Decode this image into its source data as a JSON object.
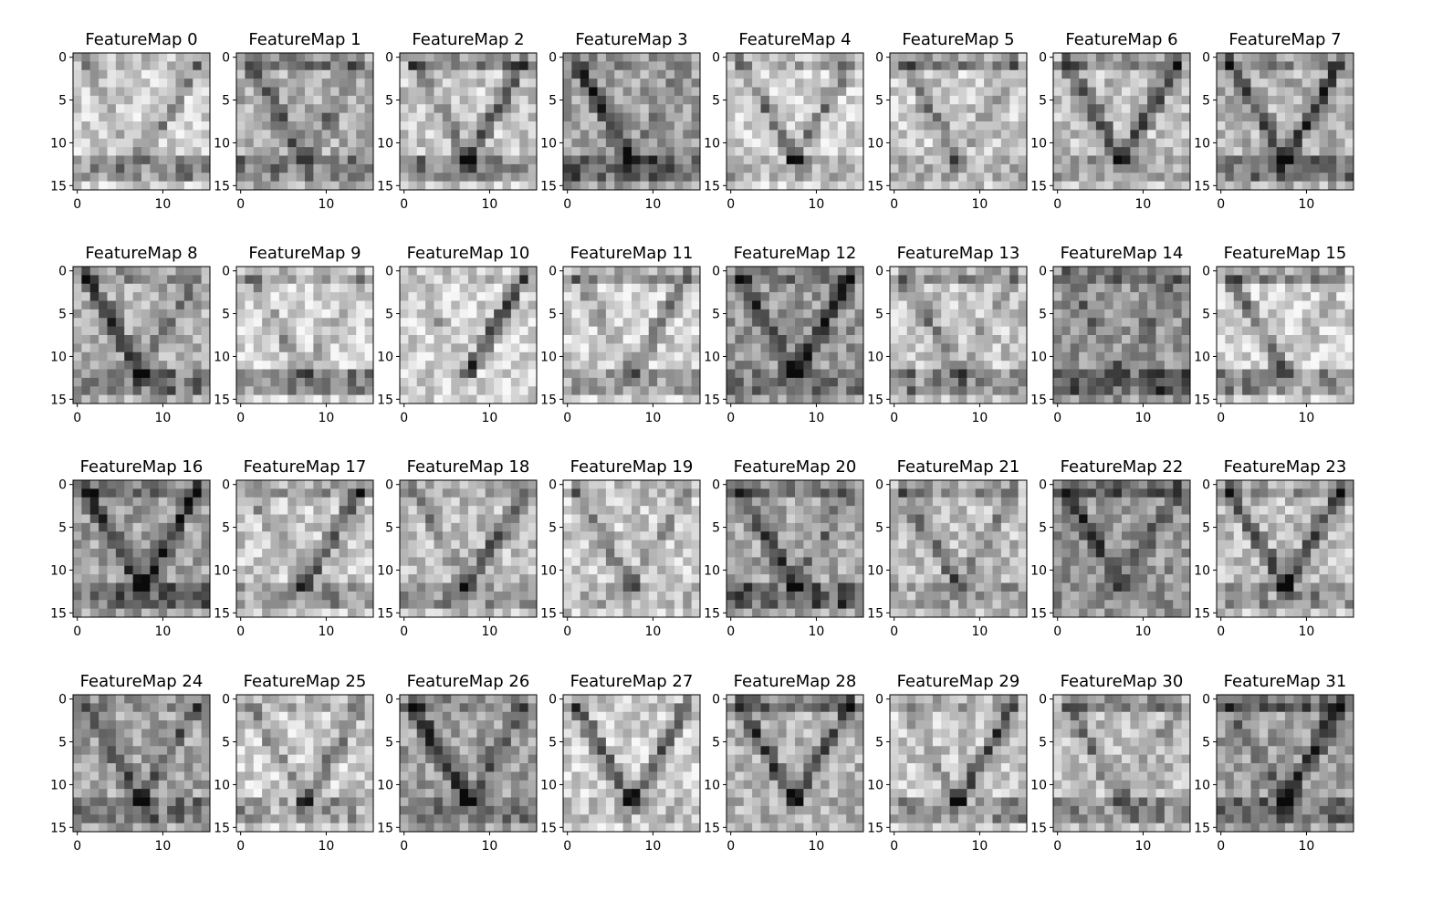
{
  "chart_data": {
    "type": "heatmap",
    "colormap": "gray",
    "grid": false,
    "layout": {
      "rows": 4,
      "cols": 8
    },
    "map_size": [
      16,
      16
    ],
    "x_ticks": [
      "0",
      "10"
    ],
    "y_ticks": [
      "0",
      "5",
      "10",
      "15"
    ],
    "panels": [
      {
        "title": "FeatureMap 0"
      },
      {
        "title": "FeatureMap 1"
      },
      {
        "title": "FeatureMap 2"
      },
      {
        "title": "FeatureMap 3"
      },
      {
        "title": "FeatureMap 4"
      },
      {
        "title": "FeatureMap 5"
      },
      {
        "title": "FeatureMap 6"
      },
      {
        "title": "FeatureMap 7"
      },
      {
        "title": "FeatureMap 8"
      },
      {
        "title": "FeatureMap 9"
      },
      {
        "title": "FeatureMap 10"
      },
      {
        "title": "FeatureMap 11"
      },
      {
        "title": "FeatureMap 12"
      },
      {
        "title": "FeatureMap 13"
      },
      {
        "title": "FeatureMap 14"
      },
      {
        "title": "FeatureMap 15"
      },
      {
        "title": "FeatureMap 16"
      },
      {
        "title": "FeatureMap 17"
      },
      {
        "title": "FeatureMap 18"
      },
      {
        "title": "FeatureMap 19"
      },
      {
        "title": "FeatureMap 20"
      },
      {
        "title": "FeatureMap 21"
      },
      {
        "title": "FeatureMap 22"
      },
      {
        "title": "FeatureMap 23"
      },
      {
        "title": "FeatureMap 24"
      },
      {
        "title": "FeatureMap 25"
      },
      {
        "title": "FeatureMap 26"
      },
      {
        "title": "FeatureMap 27"
      },
      {
        "title": "FeatureMap 28"
      },
      {
        "title": "FeatureMap 29"
      },
      {
        "title": "FeatureMap 30"
      },
      {
        "title": "FeatureMap 31"
      }
    ]
  }
}
